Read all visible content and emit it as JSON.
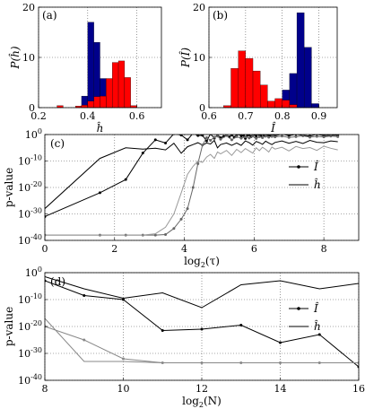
{
  "chart_data": [
    {
      "panel": "(a)",
      "type": "bar",
      "xlabel": "ĥ",
      "ylabel": "P(ĥ)",
      "xlim": [
        0.2,
        0.7
      ],
      "ylim": [
        0,
        20
      ],
      "xticks": [
        "0.2",
        "0.4",
        "0.6"
      ],
      "xtick_values": [
        0.2,
        0.4,
        0.6
      ],
      "yticks": [
        "0",
        "10",
        "20"
      ],
      "ytick_values": [
        0,
        10,
        20
      ],
      "bin_width": 0.025,
      "grid": true,
      "series": [
        {
          "color": "#00008b",
          "x": [
            0.3875,
            0.4125,
            0.4375,
            0.4625,
            0.4875
          ],
          "values": [
            2.3,
            17.0,
            13.0,
            5.8,
            0.3
          ]
        },
        {
          "color": "#ff0000",
          "x": [
            0.2875,
            0.3625,
            0.3875,
            0.4125,
            0.4375,
            0.4625,
            0.4875,
            0.5125,
            0.5375,
            0.5625,
            0.5875
          ],
          "values": [
            0.4,
            0.3,
            0.5,
            1.3,
            2.2,
            2.3,
            5.8,
            9.0,
            9.3,
            6.0,
            0.4
          ]
        }
      ]
    },
    {
      "panel": "(b)",
      "type": "bar",
      "xlabel": "Î",
      "ylabel": "P(Î)",
      "xlim": [
        0.6,
        0.95
      ],
      "ylim": [
        0,
        20
      ],
      "xticks": [
        "0.6",
        "0.7",
        "0.8",
        "0.9"
      ],
      "xtick_values": [
        0.6,
        0.7,
        0.8,
        0.9
      ],
      "yticks": [
        "0",
        "10",
        "20"
      ],
      "ytick_values": [
        0,
        10,
        20
      ],
      "bin_width": 0.02,
      "grid": true,
      "series": [
        {
          "color": "#00008b",
          "x": [
            0.81,
            0.83,
            0.85,
            0.87,
            0.89
          ],
          "values": [
            3.5,
            6.8,
            18.9,
            12.0,
            0.8
          ]
        },
        {
          "color": "#ff0000",
          "x": [
            0.65,
            0.67,
            0.69,
            0.71,
            0.73,
            0.75,
            0.77,
            0.79,
            0.81,
            0.83
          ],
          "values": [
            0.4,
            7.8,
            11.3,
            9.8,
            7.3,
            4.5,
            1.3,
            1.8,
            1.5,
            0.6
          ]
        }
      ]
    },
    {
      "panel": "(c)",
      "type": "line",
      "xlabel": "log2(τ)",
      "ylabel": "p-value",
      "xlim": [
        0,
        9
      ],
      "ylim_exp": [
        -40,
        0
      ],
      "log_y": true,
      "xticks": [
        "0",
        "2",
        "4",
        "6",
        "8"
      ],
      "xtick_values": [
        0,
        2,
        4,
        6,
        8
      ],
      "ytick_exps": [
        0,
        -10,
        -20,
        -30,
        -40
      ],
      "grid": true,
      "legend": [
        "Î",
        "ĥ"
      ],
      "legend_position": "right",
      "series": [
        {
          "name": "Î",
          "color": "#000000",
          "marker": true,
          "x": [
            0,
            1.58,
            2.32,
            2.81,
            3.17,
            3.46,
            3.7,
            3.91,
            4.09,
            4.25,
            4.39,
            4.52,
            4.64,
            4.75,
            4.86,
            4.95,
            5.04,
            5.13,
            5.21,
            5.29,
            5.36,
            5.43,
            5.5,
            5.57,
            5.63,
            5.7,
            5.75,
            5.81,
            5.86,
            5.91,
            5.96,
            6.01,
            6.06,
            6.11,
            6.15,
            6.2,
            6.24,
            6.29,
            6.33,
            6.38,
            6.42,
            6.46,
            6.51,
            6.55,
            6.6,
            6.8,
            7.0,
            7.2,
            7.4,
            7.6,
            7.8,
            8.0,
            8.2,
            8.4
          ],
          "exps": [
            -31,
            -22,
            -17,
            -7,
            -2,
            -3.2,
            0.3,
            -0.2,
            -2,
            0.5,
            -0.4,
            -0.3,
            -2.4,
            0.2,
            -1.4,
            -0.1,
            -1.2,
            -0.7,
            -0.3,
            -0.9,
            -0.2,
            -1,
            -0.2,
            0.2,
            -0.6,
            -0.4,
            -1.5,
            -0.3,
            -0.1,
            -0.8,
            -0.4,
            0.1,
            -0.6,
            0.4,
            -0.2,
            -0.5,
            0.3,
            -0.3,
            -0.6,
            0.1,
            -0.3,
            -0.4,
            -0.2,
            0.2,
            -0.5,
            0.2,
            -0.4,
            0.1,
            -0.3,
            -0.6,
            0.1,
            -0.4,
            -0.2,
            -0.3
          ]
        },
        {
          "name": "ĥ",
          "color": "#000000",
          "marker": false,
          "x": [
            0,
            1.58,
            2.32,
            2.81,
            3.17,
            3.46,
            3.7,
            3.91,
            4.09,
            4.25,
            4.39,
            4.52,
            4.64,
            4.75,
            4.86,
            4.95,
            5.04,
            5.21,
            5.36,
            5.5,
            5.63,
            5.75,
            5.86,
            5.96,
            6.06,
            6.15,
            6.24,
            6.33,
            6.42,
            6.51,
            6.6,
            6.8,
            7.0,
            7.2,
            7.4,
            7.6,
            7.8,
            8.0,
            8.2,
            8.4
          ],
          "exps": [
            -28,
            -9,
            -5,
            -5.5,
            -5.2,
            -5.8,
            -3.3,
            -7.1,
            -4.6,
            -3.8,
            -3.1,
            -4.0,
            -3.2,
            -3.6,
            -2.2,
            -5.0,
            -3.8,
            -3.2,
            -4.1,
            -3.2,
            -4.1,
            -2.4,
            -3.1,
            -4.0,
            -2.6,
            -3.1,
            -3.7,
            -2.5,
            -3.2,
            -3.8,
            -3.0,
            -2.4,
            -3.3,
            -2.6,
            -3.4,
            -2.2,
            -2.9,
            -3.1,
            -2.4,
            -2.7
          ]
        },
        {
          "name": "Î",
          "color": "#666666",
          "marker": true,
          "x": [
            0,
            1.58,
            2.32,
            2.81,
            3.17,
            3.46,
            3.7,
            3.91,
            4.09,
            4.25,
            4.39,
            4.52,
            4.64,
            4.75,
            4.86,
            4.95,
            5.04,
            5.21,
            5.36,
            5.5,
            5.63,
            5.75,
            5.86,
            5.96,
            6.06,
            6.15,
            6.24,
            6.33,
            6.42,
            6.51,
            6.6,
            6.8,
            7.0,
            7.2,
            7.4,
            7.6,
            7.8,
            8.0,
            8.2,
            8.4
          ],
          "exps": [
            -38,
            -38,
            -38,
            -38,
            -38,
            -37.8,
            -35.5,
            -32,
            -28,
            -20,
            -11,
            -4,
            -1.2,
            -2.2,
            -1.0,
            -0.6,
            -1.8,
            -0.4,
            -2.0,
            -0.8,
            -1.4,
            -0.9,
            -1.3,
            -0.6,
            -1.5,
            -0.8,
            -1.2,
            -0.6,
            -1.0,
            -0.7,
            -0.9,
            -0.6,
            -1.1,
            -0.8,
            -0.5,
            -1.0,
            -0.7,
            -0.9,
            -0.6,
            -0.8
          ]
        },
        {
          "name": "ĥ",
          "color": "#999999",
          "marker": false,
          "x": [
            0,
            1.58,
            2.32,
            2.81,
            3.17,
            3.46,
            3.7,
            3.91,
            4.09,
            4.25,
            4.39,
            4.52,
            4.64,
            4.75,
            4.86,
            4.95,
            5.04,
            5.21,
            5.36,
            5.5,
            5.63,
            5.75,
            5.86,
            5.96,
            6.06,
            6.15,
            6.24,
            6.33,
            6.42,
            6.51,
            6.6,
            6.8,
            7.0,
            7.2,
            7.4,
            7.6,
            7.8,
            8.0,
            8.2,
            8.4
          ],
          "exps": [
            -38,
            -38,
            -38,
            -38,
            -37.5,
            -35,
            -30,
            -22,
            -15,
            -12,
            -10,
            -10.5,
            -8.5,
            -7.5,
            -9.0,
            -6.6,
            -7.3,
            -6.0,
            -7.9,
            -5.6,
            -6.8,
            -5.3,
            -6.2,
            -7.0,
            -5.0,
            -6.1,
            -4.8,
            -5.6,
            -6.6,
            -4.7,
            -5.5,
            -4.8,
            -6.2,
            -4.5,
            -5.3,
            -4.9,
            -6.0,
            -4.4,
            -5.2,
            -5.8
          ]
        }
      ]
    },
    {
      "panel": "(d)",
      "type": "line",
      "xlabel": "log2(N)",
      "ylabel": "p-value",
      "xlim": [
        8,
        16
      ],
      "ylim_exp": [
        -40,
        0
      ],
      "log_y": true,
      "xticks": [
        "8",
        "10",
        "12",
        "14",
        "16"
      ],
      "xtick_values": [
        8,
        10,
        12,
        14,
        16
      ],
      "ytick_exps": [
        0,
        -10,
        -20,
        -30,
        -40
      ],
      "grid": true,
      "legend": [
        "Î",
        "ĥ"
      ],
      "legend_position": "right",
      "series": [
        {
          "name": "Î",
          "color": "#000000",
          "marker": true,
          "x": [
            8,
            9,
            10,
            11,
            12,
            13,
            14,
            15,
            16
          ],
          "exps": [
            -3,
            -8.5,
            -10,
            -21.5,
            -21,
            -19.5,
            -26,
            -23,
            -35
          ]
        },
        {
          "name": "ĥ",
          "color": "#000000",
          "marker": false,
          "x": [
            8,
            9,
            10,
            11,
            12,
            13,
            14,
            15,
            16
          ],
          "exps": [
            -1.5,
            -6,
            -9.5,
            -7.5,
            -13,
            -4.5,
            -3,
            -6,
            -4
          ]
        },
        {
          "name": "Î",
          "color": "#888888",
          "marker": true,
          "x": [
            8,
            9,
            10,
            11,
            12,
            13,
            14,
            15,
            16
          ],
          "exps": [
            -20,
            -25,
            -32,
            -33.5,
            -33.5,
            -33.5,
            -33.5,
            -33.5,
            -33.5
          ]
        },
        {
          "name": "ĥ",
          "color": "#888888",
          "marker": false,
          "x": [
            8,
            9,
            10,
            11,
            12,
            13,
            14,
            15,
            16
          ],
          "exps": [
            -17,
            -33,
            -33,
            -33.5,
            -33.5,
            -33.5,
            -33.5,
            -33.5,
            -33.5
          ]
        }
      ]
    }
  ]
}
